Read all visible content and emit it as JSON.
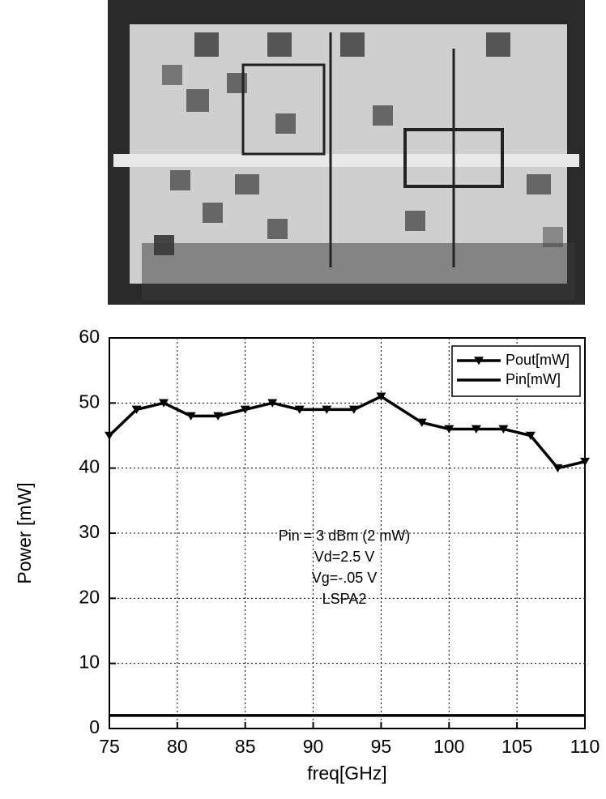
{
  "chart_data": {
    "type": "line",
    "xlabel": "freq[GHz]",
    "ylabel": "Power [mW]",
    "xlim": [
      75,
      110
    ],
    "xticks": [
      75,
      80,
      85,
      90,
      95,
      100,
      105,
      110
    ],
    "ylim": [
      0,
      60
    ],
    "yticks": [
      0,
      10,
      20,
      30,
      40,
      50,
      60
    ],
    "grid": true,
    "legend": "upper right",
    "annotations": [
      "Pin = 3 dBm (2 mW)",
      "Vd=2.5 V",
      "Vg=-.05 V",
      "LSPA2"
    ],
    "series": [
      {
        "name": "Pout[mW]",
        "color": "#000000",
        "marker": "triangle-down",
        "x": [
          75,
          77,
          79,
          81,
          83,
          85,
          87,
          89,
          91,
          93,
          95,
          98,
          100,
          102,
          104,
          106,
          108,
          110
        ],
        "values": [
          45,
          49,
          50,
          48,
          48,
          49,
          50,
          49,
          49,
          49,
          51,
          47,
          46,
          46,
          46,
          45,
          40,
          41
        ]
      },
      {
        "name": "Pin[mW]",
        "color": "#000000",
        "x": [
          75,
          110
        ],
        "values": [
          2,
          2
        ]
      }
    ]
  }
}
